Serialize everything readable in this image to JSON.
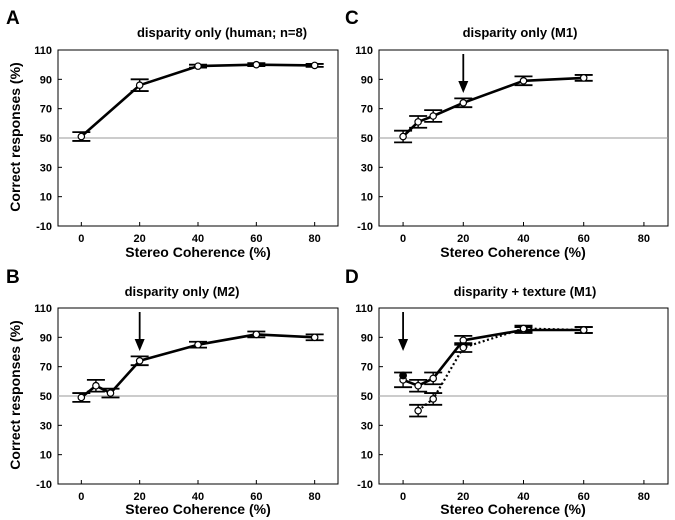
{
  "figure": {
    "ylabel_top": "Correct responses (%)",
    "ylabel_bottom": "Correct responses (%)"
  },
  "chart_data": [
    {
      "panel": "A",
      "type": "line",
      "title": "disparity only (human; n=8)",
      "xlabel": "Stereo Coherence (%)",
      "ylabel": "Correct responses (%)",
      "xlim": [
        -8,
        88
      ],
      "ylim": [
        -10,
        110
      ],
      "xticks": [
        0,
        20,
        40,
        60,
        80
      ],
      "yticks": [
        -10,
        10,
        30,
        50,
        70,
        90,
        110
      ],
      "reference_line": 50,
      "series": [
        {
          "style": "solid",
          "x": [
            0,
            20,
            40,
            60,
            80
          ],
          "y": [
            51,
            86,
            99,
            100,
            99.5
          ],
          "err": [
            3,
            4,
            1,
            1,
            1
          ]
        }
      ],
      "arrows": []
    },
    {
      "panel": "C",
      "type": "line",
      "title": "disparity only (M1)",
      "xlabel": "Stereo Coherence (%)",
      "ylabel": "",
      "xlim": [
        -8,
        88
      ],
      "ylim": [
        -10,
        110
      ],
      "xticks": [
        0,
        20,
        40,
        60,
        80
      ],
      "yticks": [
        -10,
        10,
        30,
        50,
        70,
        90,
        110
      ],
      "reference_line": 50,
      "series": [
        {
          "style": "solid",
          "x": [
            0,
            5,
            10,
            20,
            40,
            60
          ],
          "y": [
            51,
            61,
            65,
            74,
            89,
            91
          ],
          "err": [
            4,
            4,
            4,
            3,
            3,
            2
          ]
        }
      ],
      "arrows": [
        {
          "x": 20
        }
      ]
    },
    {
      "panel": "B",
      "type": "line",
      "title": "disparity only (M2)",
      "xlabel": "Stereo Coherence (%)",
      "ylabel": "Correct responses (%)",
      "xlim": [
        -8,
        88
      ],
      "ylim": [
        -10,
        110
      ],
      "xticks": [
        0,
        20,
        40,
        60,
        80
      ],
      "yticks": [
        -10,
        10,
        30,
        50,
        70,
        90,
        110
      ],
      "reference_line": 50,
      "series": [
        {
          "style": "solid",
          "x": [
            0,
            5,
            10,
            20,
            40,
            60,
            80
          ],
          "y": [
            49,
            57,
            52,
            74,
            85,
            92,
            90
          ],
          "err": [
            3,
            4,
            3,
            3,
            2,
            2,
            2
          ]
        }
      ],
      "arrows": [
        {
          "x": 20
        }
      ]
    },
    {
      "panel": "D",
      "type": "line",
      "title": "disparity + texture (M1)",
      "xlabel": "Stereo Coherence (%)",
      "ylabel": "",
      "xlim": [
        -8,
        88
      ],
      "ylim": [
        -10,
        110
      ],
      "xticks": [
        0,
        20,
        40,
        60,
        80
      ],
      "yticks": [
        -10,
        10,
        30,
        50,
        70,
        90,
        110
      ],
      "reference_line": 50,
      "series": [
        {
          "style": "solid",
          "x": [
            0,
            5,
            10,
            20,
            40,
            60
          ],
          "y": [
            61,
            57,
            62,
            88,
            95,
            95
          ],
          "err": [
            5,
            4,
            4,
            3,
            2,
            2
          ]
        },
        {
          "style": "dotted",
          "x": [
            5,
            10,
            20,
            40,
            60
          ],
          "y": [
            40,
            48,
            83,
            96,
            95
          ],
          "err": [
            4,
            4,
            3,
            2,
            2
          ]
        }
      ],
      "point_markers": [
        {
          "x": 0,
          "y": 64
        }
      ],
      "arrows": [
        {
          "x": 0
        }
      ]
    }
  ]
}
